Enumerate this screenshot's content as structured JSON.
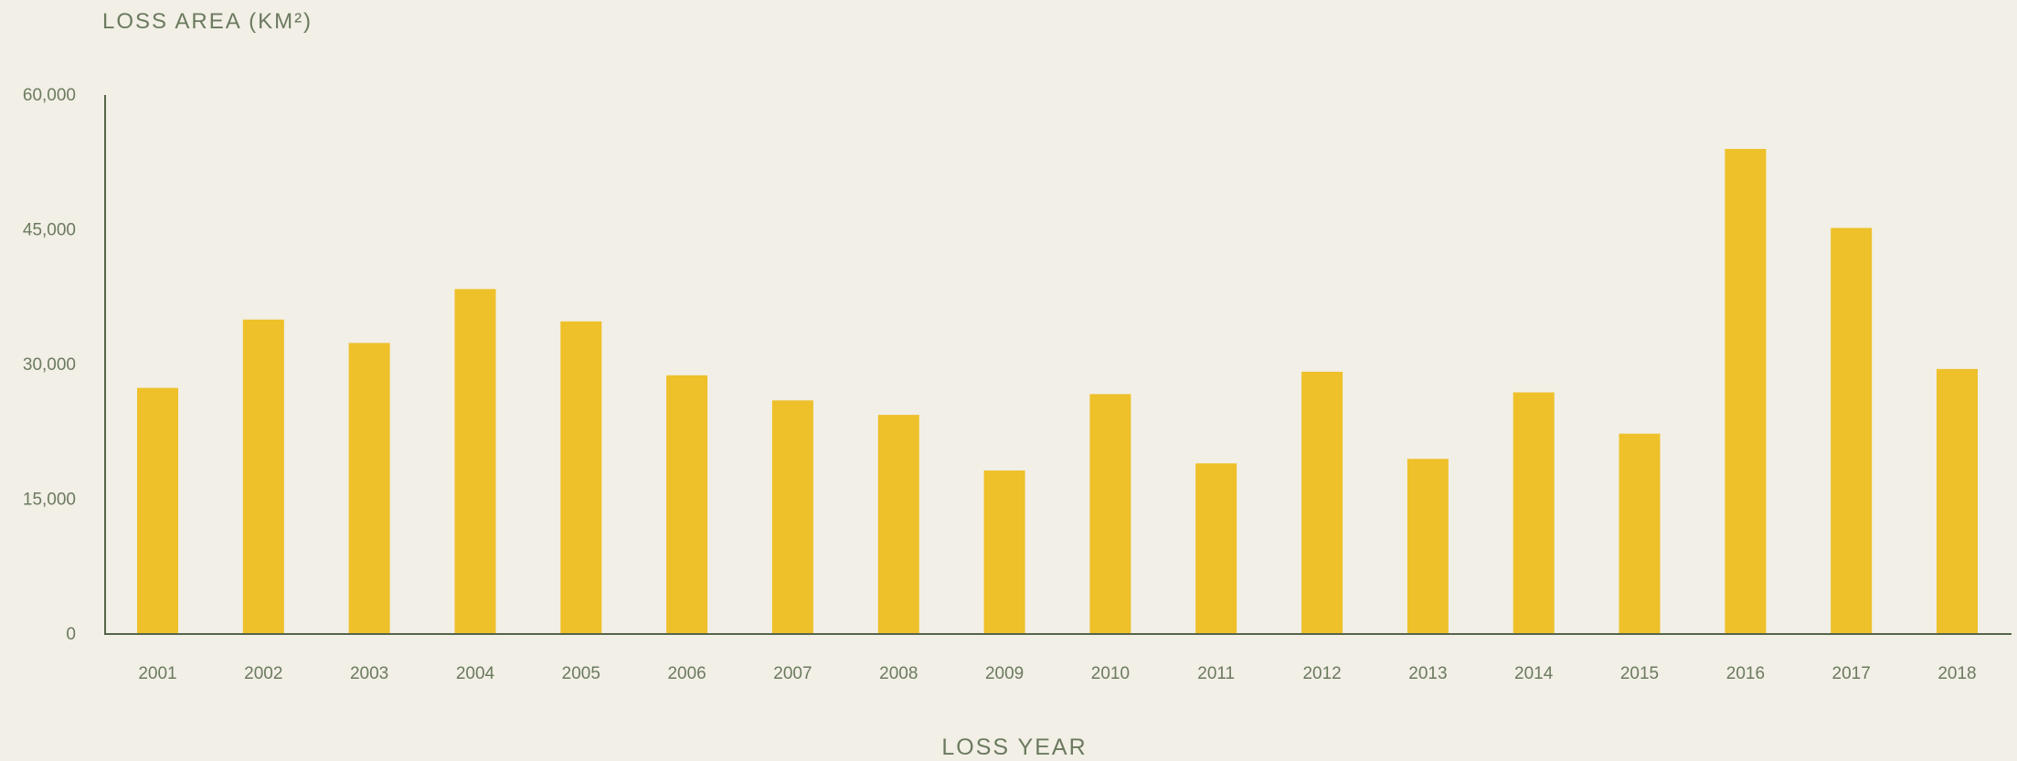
{
  "chart_data": {
    "type": "bar",
    "title": "",
    "ylabel": "LOSS AREA (KM²)",
    "xlabel": "LOSS YEAR",
    "categories": [
      "2001",
      "2002",
      "2003",
      "2004",
      "2005",
      "2006",
      "2007",
      "2008",
      "2009",
      "2010",
      "2011",
      "2012",
      "2013",
      "2014",
      "2015",
      "2016",
      "2017",
      "2018"
    ],
    "values": [
      27400,
      35000,
      32400,
      38400,
      34800,
      28800,
      26000,
      24400,
      18200,
      26700,
      19000,
      29200,
      19500,
      26900,
      22300,
      54000,
      45200,
      29500
    ],
    "ylim": [
      0,
      60000
    ],
    "yticks": [
      0,
      15000,
      30000,
      45000,
      60000
    ],
    "ytick_labels": [
      "0",
      "15,000",
      "30,000",
      "45,000",
      "60,000"
    ],
    "grid": false,
    "legend": "none",
    "colors": {
      "bar": "#eec02a",
      "axis": "#55654a",
      "text": "#6b7a5f",
      "background": "#f2efe6"
    }
  }
}
